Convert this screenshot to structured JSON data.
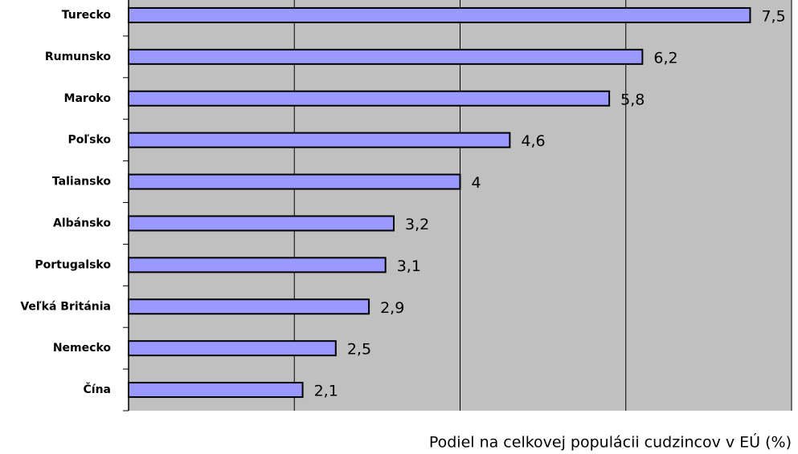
{
  "chart_data": {
    "type": "barh",
    "x_label": "Podiel na celkovej populácii cudzincov v EÚ (%)",
    "categories": [
      "Turecko",
      "Rumunsko",
      "Maroko",
      "Poľsko",
      "Taliansko",
      "Albánsko",
      "Portugalsko",
      "Veľká Británia",
      "Nemecko",
      "Čína"
    ],
    "values": [
      7.5,
      6.2,
      5.8,
      4.6,
      4,
      3.2,
      3.1,
      2.9,
      2.5,
      2.1
    ],
    "value_labels": [
      "7,5",
      "6,2",
      "5,8",
      "4,6",
      "4",
      "3,2",
      "3,1",
      "2,9",
      "2,5",
      "2,1"
    ],
    "color": "#9999ff",
    "xlim": [
      0,
      8
    ],
    "xticks": [
      0,
      2,
      4,
      6,
      8
    ],
    "grid": true
  }
}
